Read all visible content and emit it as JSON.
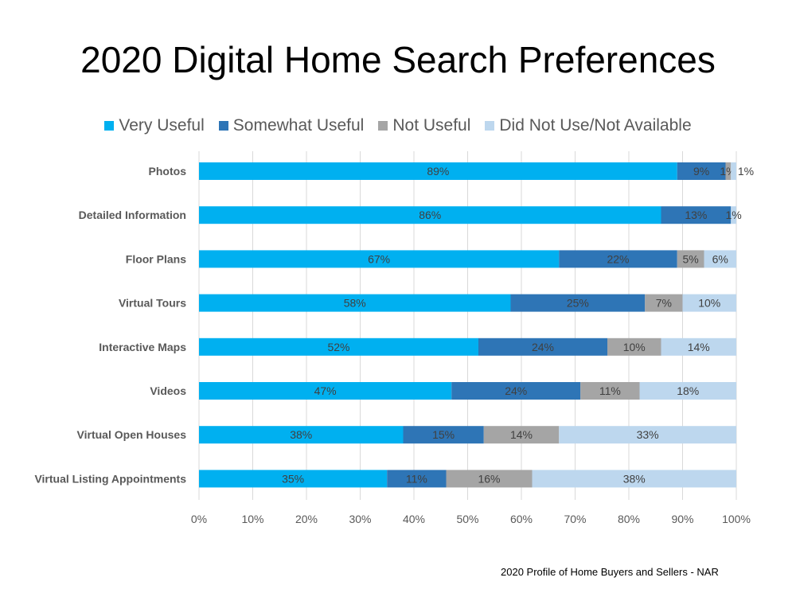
{
  "chart_data": {
    "type": "bar",
    "orientation": "horizontal",
    "stacked": "percent",
    "title": "2020 Digital Home Search Preferences",
    "categories": [
      "Photos",
      "Detailed Information",
      "Floor Plans",
      "Virtual Tours",
      "Interactive Maps",
      "Videos",
      "Virtual Open Houses",
      "Virtual Listing Appointments"
    ],
    "series": [
      {
        "name": "Very Useful",
        "color": "#00B0F0",
        "values": [
          89,
          86,
          67,
          58,
          52,
          47,
          38,
          35
        ]
      },
      {
        "name": "Somewhat Useful",
        "color": "#2E75B6",
        "values": [
          9,
          13,
          22,
          25,
          24,
          24,
          15,
          11
        ]
      },
      {
        "name": "Not Useful",
        "color": "#A5A5A5",
        "values": [
          1,
          0,
          5,
          7,
          10,
          11,
          14,
          16
        ]
      },
      {
        "name": "Did Not Use/Not Available",
        "color": "#BDD7EE",
        "values": [
          1,
          1,
          6,
          10,
          14,
          18,
          33,
          38
        ]
      }
    ],
    "xlim": [
      0,
      100
    ],
    "xticks": [
      "0%",
      "10%",
      "20%",
      "30%",
      "40%",
      "50%",
      "60%",
      "70%",
      "80%",
      "90%",
      "100%"
    ],
    "legend": "top",
    "grid": true
  },
  "source": "2020 Profile of Home Buyers and Sellers - NAR"
}
